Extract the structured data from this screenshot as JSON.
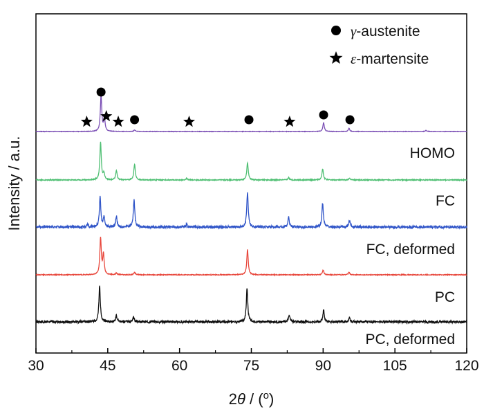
{
  "chart_data": {
    "type": "line",
    "title": "",
    "xlabel": "2θ / (o)",
    "ylabel": "Intensity / a.u.",
    "xlim": [
      30,
      120
    ],
    "xticks": [
      30,
      45,
      60,
      75,
      90,
      105,
      120
    ],
    "legend": {
      "placement": "top-right",
      "entries": [
        {
          "marker": "circle",
          "symbol": "γ",
          "text": "-austenite"
        },
        {
          "marker": "star",
          "symbol": "ε",
          "text": "-martensite"
        }
      ]
    },
    "series": [
      {
        "label": "",
        "color": "#7b4fb5",
        "noise": 0.3,
        "peaks": [
          [
            43.6,
            45
          ],
          [
            44.3,
            16
          ],
          [
            50.6,
            2
          ],
          [
            90.1,
            11
          ],
          [
            95.4,
            4
          ],
          [
            111.5,
            1.5
          ]
        ]
      },
      {
        "label": "HOMO",
        "color": "#4fbf73",
        "noise": 0.6,
        "peaks": [
          [
            43.5,
            47
          ],
          [
            44.2,
            8
          ],
          [
            46.8,
            12
          ],
          [
            50.6,
            20
          ],
          [
            61.5,
            2
          ],
          [
            74.2,
            22
          ],
          [
            82.8,
            3
          ],
          [
            89.9,
            14
          ],
          [
            95.5,
            2
          ]
        ]
      },
      {
        "label": "FC",
        "color": "#3055c8",
        "noise": 1.6,
        "peaks": [
          [
            40.8,
            4
          ],
          [
            43.4,
            38
          ],
          [
            44.2,
            12
          ],
          [
            46.8,
            14
          ],
          [
            50.5,
            34
          ],
          [
            61.5,
            3
          ],
          [
            74.2,
            44
          ],
          [
            82.8,
            12
          ],
          [
            89.9,
            30
          ],
          [
            95.5,
            8
          ]
        ]
      },
      {
        "label": "FC, deformed",
        "color": "#e8473c",
        "noise": 0.5,
        "peaks": [
          [
            43.5,
            46
          ],
          [
            44.1,
            25
          ],
          [
            46.8,
            2
          ],
          [
            50.6,
            3
          ],
          [
            74.2,
            32
          ],
          [
            90.0,
            6
          ],
          [
            95.4,
            3
          ]
        ]
      },
      {
        "label": "PC",
        "color": "#111111",
        "noise": 1.5,
        "peaks": [
          [
            43.3,
            45
          ],
          [
            46.8,
            8
          ],
          [
            50.4,
            6
          ],
          [
            74.1,
            42
          ],
          [
            82.9,
            9
          ],
          [
            90.1,
            15
          ],
          [
            95.5,
            5
          ]
        ]
      },
      {
        "label": "PC, deformed",
        "color": "",
        "noise": 0,
        "peaks": []
      }
    ],
    "peak_markers": [
      {
        "type": "circle",
        "x": 43.6
      },
      {
        "type": "star",
        "x": 40.6
      },
      {
        "type": "star",
        "x": 44.7
      },
      {
        "type": "star",
        "x": 47.2
      },
      {
        "type": "circle",
        "x": 50.6
      },
      {
        "type": "star",
        "x": 62.0
      },
      {
        "type": "circle",
        "x": 74.5
      },
      {
        "type": "star",
        "x": 83.0
      },
      {
        "type": "circle",
        "x": 90.1
      },
      {
        "type": "circle",
        "x": 95.6
      }
    ]
  }
}
